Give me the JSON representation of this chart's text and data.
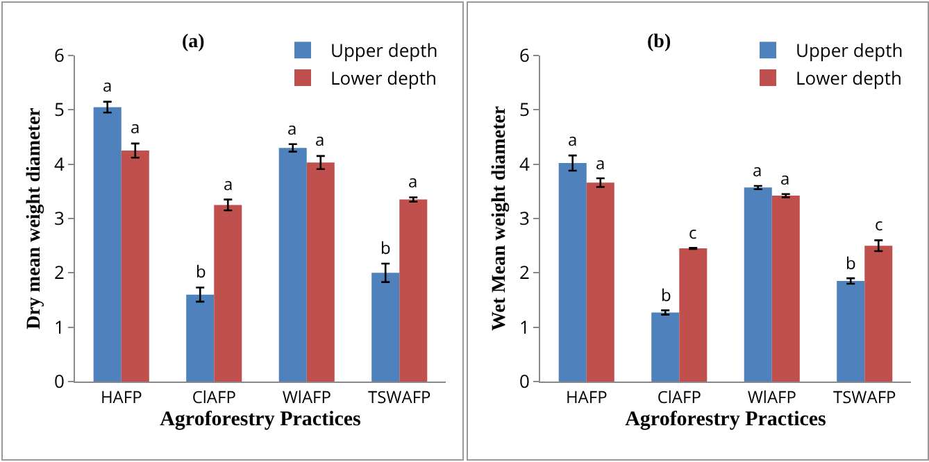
{
  "chart_data": [
    {
      "type": "bar",
      "title": "(a)",
      "xlabel": "Agroforestry Practices",
      "ylabel": "Dry mean weight diameter",
      "categories": [
        "HAFP",
        "ClAFP",
        "WlAFP",
        "TSWAFP"
      ],
      "series": [
        {
          "name": "Upper depth",
          "color": "#4f81bd",
          "values": [
            5.05,
            1.6,
            4.3,
            2.0
          ],
          "errors": [
            0.1,
            0.13,
            0.07,
            0.17
          ]
        },
        {
          "name": "Lower depth",
          "color": "#c0504d",
          "values": [
            4.25,
            3.25,
            4.03,
            3.35
          ],
          "errors": [
            0.13,
            0.1,
            0.12,
            0.04
          ]
        }
      ],
      "ylim": [
        0,
        6
      ],
      "yticks": [
        0,
        1,
        2,
        3,
        4,
        5,
        6
      ],
      "grid": false,
      "legend": "top right",
      "annotations": [
        "a",
        "a",
        "b",
        "a",
        "a",
        "a",
        "b",
        "a"
      ]
    },
    {
      "type": "bar",
      "title": "(b)",
      "xlabel": "Agroforestry Practices",
      "ylabel": "Wet Mean weight diameter",
      "categories": [
        "HAFP",
        "ClAFP",
        "WlAFP",
        "TSWAFP"
      ],
      "series": [
        {
          "name": "Upper depth",
          "color": "#4f81bd",
          "values": [
            4.02,
            1.27,
            3.57,
            1.85
          ],
          "errors": [
            0.14,
            0.04,
            0.03,
            0.05
          ]
        },
        {
          "name": "Lower depth",
          "color": "#c0504d",
          "values": [
            3.66,
            2.45,
            3.42,
            2.5
          ],
          "errors": [
            0.08,
            0.01,
            0.03,
            0.1
          ]
        }
      ],
      "ylim": [
        0,
        6
      ],
      "yticks": [
        0,
        1,
        2,
        3,
        4,
        5,
        6
      ],
      "grid": false,
      "legend": "top right",
      "annotations": [
        "a",
        "a",
        "b",
        "c",
        "a",
        "a",
        "b",
        "c"
      ]
    }
  ]
}
